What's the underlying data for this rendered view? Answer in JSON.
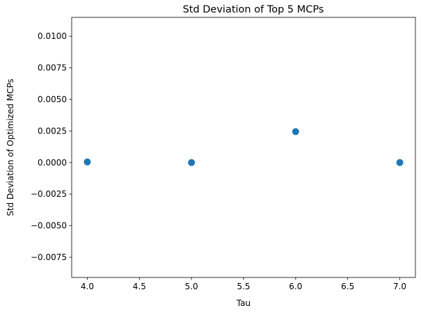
{
  "chart_data": {
    "type": "scatter",
    "title": "Std Deviation of Top 5 MCPs",
    "xlabel": "Tau",
    "ylabel": "Std Deviation of Optimized MCPs",
    "xlim": [
      3.85,
      7.15
    ],
    "ylim": [
      -0.0091,
      0.0115
    ],
    "x_ticks": [
      4.0,
      4.5,
      5.0,
      5.5,
      6.0,
      6.5,
      7.0
    ],
    "x_tick_labels": [
      "4.0",
      "4.5",
      "5.0",
      "5.5",
      "6.0",
      "6.5",
      "7.0"
    ],
    "y_ticks": [
      -0.0075,
      -0.005,
      -0.0025,
      0.0,
      0.0025,
      0.005,
      0.0075,
      0.01
    ],
    "y_tick_labels": [
      "−0.0075",
      "−0.0050",
      "−0.0025",
      "0.0000",
      "0.0025",
      "0.0050",
      "0.0075",
      "0.0100"
    ],
    "grid": false,
    "legend": "none",
    "marker_color": "#1f77b4",
    "points": [
      {
        "x": 4.0,
        "y": 5e-05
      },
      {
        "x": 5.0,
        "y": 0.0
      },
      {
        "x": 6.0,
        "y": 0.00245
      },
      {
        "x": 7.0,
        "y": 0.0
      }
    ]
  }
}
